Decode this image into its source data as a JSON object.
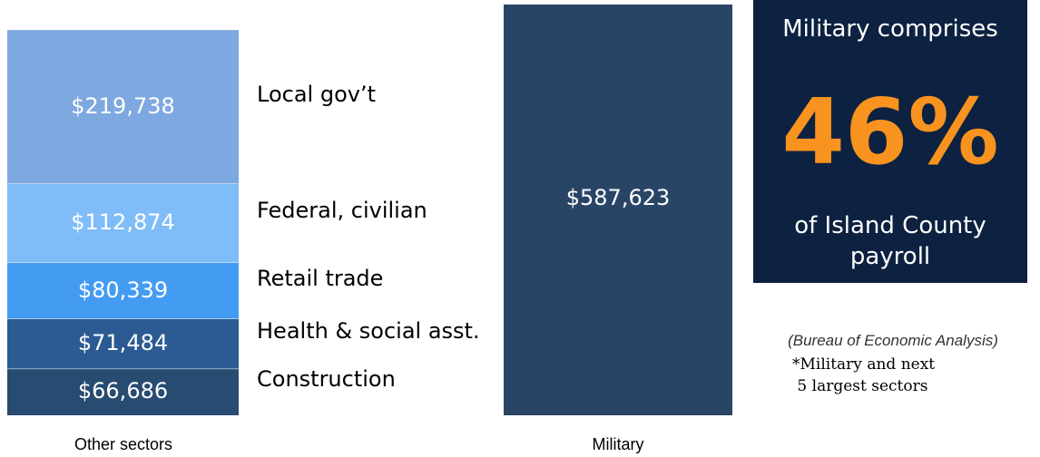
{
  "chart_data": {
    "type": "bar",
    "stacked": true,
    "categories": [
      "Other sectors",
      "Military"
    ],
    "series": [
      {
        "name": "Local gov’t",
        "display": "$219,738",
        "values": [
          219738,
          0
        ],
        "color": "#7ea8e0"
      },
      {
        "name": "Federal, civilian",
        "display": "$112,874",
        "values": [
          112874,
          0
        ],
        "color": "#80bcf7"
      },
      {
        "name": "Retail trade",
        "display": "$80,339",
        "values": [
          80339,
          0
        ],
        "color": "#449cf2"
      },
      {
        "name": "Health & social asst.",
        "display": "$71,484",
        "values": [
          71484,
          0
        ],
        "color": "#2b5b92"
      },
      {
        "name": "Construction",
        "display": "$66,686",
        "values": [
          66686,
          0
        ],
        "color": "#284b71"
      },
      {
        "name": "Military",
        "display": "$587,623",
        "values": [
          0,
          587623
        ],
        "color": "#294566"
      }
    ],
    "title": "",
    "xlabel": "",
    "ylabel": ""
  },
  "callout": {
    "top": "Military comprises",
    "percent": "46%",
    "percent_color": "#f7931e",
    "bottom_line1": "of Island County",
    "bottom_line2": "payroll"
  },
  "source_note": "(Bureau of Economic Analysis)",
  "footnote_line1": "*Military and next",
  "footnote_line2": "5 largest sectors"
}
